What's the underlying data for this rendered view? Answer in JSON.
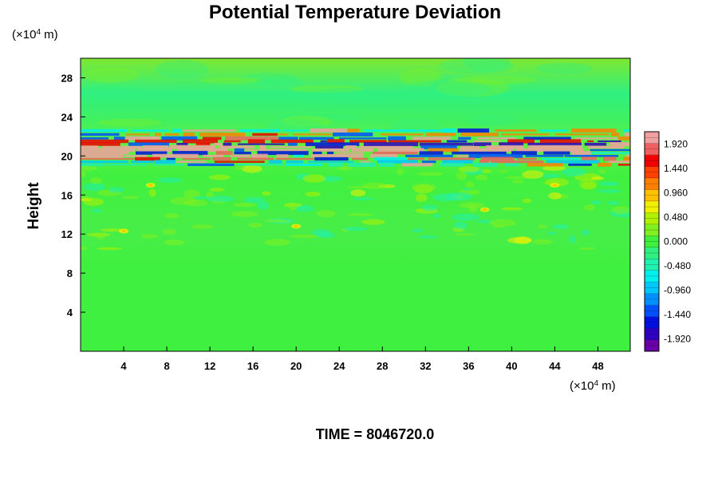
{
  "chart_data": {
    "type": "heatmap",
    "title": "Potential Temperature Deviation",
    "ylabel": "Height",
    "xunit_prefix": "(×10",
    "xunit_exp": "4",
    "xunit_suffix": " m)",
    "yunit_prefix": "(×10",
    "yunit_exp": "4",
    "yunit_suffix": " m)",
    "xlim": [
      0,
      51
    ],
    "ylim": [
      0,
      30
    ],
    "x_ticks": [
      4,
      8,
      12,
      16,
      20,
      24,
      28,
      32,
      36,
      40,
      44,
      48
    ],
    "x_tick_labels": [
      "4",
      "8",
      "12",
      "16",
      "20",
      "24",
      "28",
      "32",
      "36",
      "40",
      "44",
      "48"
    ],
    "y_ticks": [
      4,
      8,
      12,
      16,
      20,
      24,
      28
    ],
    "y_tick_labels": [
      "4",
      "8",
      "12",
      "16",
      "20",
      "24",
      "28"
    ],
    "colorbar": {
      "range": [
        -2.16,
        2.16
      ],
      "tick_values": [
        1.92,
        1.44,
        0.96,
        0.48,
        0.0,
        -0.48,
        -0.96,
        -1.44,
        -1.92
      ],
      "tick_labels": [
        "1.920",
        "1.440",
        "0.960",
        "0.480",
        "0.000",
        "-0.480",
        "-0.960",
        "-1.440",
        "-1.920"
      ],
      "colors": [
        "#6a00a8",
        "#3000c0",
        "#0010e0",
        "#0050ff",
        "#0090ff",
        "#00c8ff",
        "#00f0f0",
        "#20f0b0",
        "#30f080",
        "#40f040",
        "#80f020",
        "#b0f000",
        "#f0f000",
        "#ffc000",
        "#ff8000",
        "#ff4000",
        "#f00000",
        "#f06060",
        "#f0a0a0"
      ]
    },
    "field_summary": [
      {
        "height_range": [
          0,
          10.5
        ],
        "value": 0.0
      },
      {
        "height_range": [
          10.5,
          19
        ],
        "value": 0.1
      },
      {
        "height_range": [
          19,
          22.5
        ],
        "value": "oscillating -2 to 2"
      },
      {
        "height_range": [
          22.5,
          30
        ],
        "value": 0.15
      }
    ]
  },
  "footer": {
    "time_label": "TIME = 8046720.0"
  }
}
